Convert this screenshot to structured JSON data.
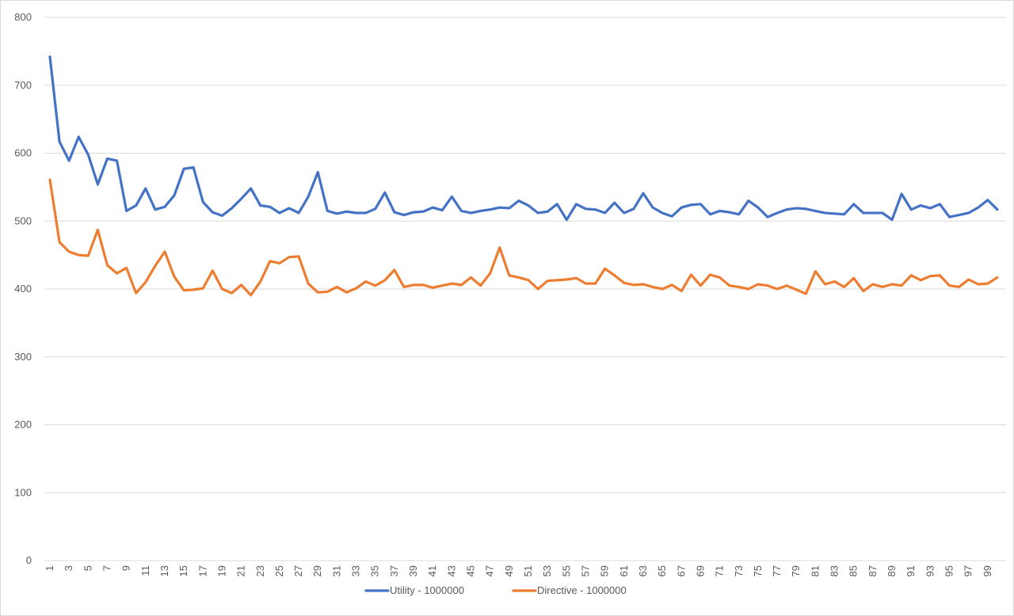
{
  "chart_data": {
    "type": "line",
    "title": "",
    "xlabel": "",
    "ylabel": "",
    "ylim": [
      0,
      800
    ],
    "yticks": [
      0,
      100,
      200,
      300,
      400,
      500,
      600,
      700,
      800
    ],
    "x": [
      1,
      2,
      3,
      4,
      5,
      6,
      7,
      8,
      9,
      10,
      11,
      12,
      13,
      14,
      15,
      16,
      17,
      18,
      19,
      20,
      21,
      22,
      23,
      24,
      25,
      26,
      27,
      28,
      29,
      30,
      31,
      32,
      33,
      34,
      35,
      36,
      37,
      38,
      39,
      40,
      41,
      42,
      43,
      44,
      45,
      46,
      47,
      48,
      49,
      50,
      51,
      52,
      53,
      54,
      55,
      56,
      57,
      58,
      59,
      60,
      61,
      62,
      63,
      64,
      65,
      66,
      67,
      68,
      69,
      70,
      71,
      72,
      73,
      74,
      75,
      76,
      77,
      78,
      79,
      80,
      81,
      82,
      83,
      84,
      85,
      86,
      87,
      88,
      89,
      90,
      91,
      92,
      93,
      94,
      95,
      96,
      97,
      98,
      99,
      100
    ],
    "xtick_labels": [
      "1",
      "3",
      "5",
      "7",
      "9",
      "11",
      "13",
      "15",
      "17",
      "19",
      "21",
      "23",
      "25",
      "27",
      "29",
      "31",
      "33",
      "35",
      "37",
      "39",
      "41",
      "43",
      "45",
      "47",
      "49",
      "51",
      "53",
      "55",
      "57",
      "59",
      "61",
      "63",
      "65",
      "67",
      "69",
      "71",
      "73",
      "75",
      "77",
      "79",
      "81",
      "83",
      "85",
      "87",
      "89",
      "91",
      "93",
      "95",
      "97",
      "99"
    ],
    "grid": true,
    "legend_position": "bottom",
    "series": [
      {
        "name": "Utility - 1000000",
        "color": "#4472C4",
        "values": [
          742,
          617,
          589,
          624,
          598,
          554,
          592,
          589,
          515,
          523,
          548,
          517,
          521,
          538,
          577,
          579,
          528,
          513,
          508,
          519,
          533,
          548,
          523,
          521,
          512,
          519,
          512,
          536,
          572,
          515,
          511,
          514,
          512,
          512,
          518,
          542,
          513,
          509,
          513,
          514,
          520,
          516,
          536,
          515,
          512,
          515,
          517,
          520,
          519,
          530,
          523,
          512,
          514,
          525,
          502,
          525,
          518,
          517,
          512,
          527,
          512,
          518,
          541,
          520,
          512,
          507,
          520,
          524,
          525,
          510,
          515,
          513,
          510,
          530,
          520,
          506,
          512,
          517,
          519,
          518,
          515,
          512,
          511,
          510,
          525,
          512,
          512,
          512,
          502,
          540,
          517,
          523,
          519,
          525,
          506,
          509,
          512,
          520,
          531,
          517
        ]
      },
      {
        "name": "Directive - 1000000",
        "color": "#ED7D31",
        "values": [
          561,
          469,
          455,
          450,
          449,
          487,
          435,
          423,
          431,
          394,
          410,
          434,
          455,
          418,
          398,
          399,
          401,
          427,
          400,
          394,
          406,
          391,
          411,
          441,
          438,
          447,
          448,
          408,
          395,
          396,
          403,
          395,
          401,
          411,
          405,
          413,
          428,
          403,
          406,
          406,
          402,
          405,
          408,
          406,
          417,
          405,
          423,
          461,
          420,
          417,
          413,
          400,
          412,
          413,
          414,
          416,
          408,
          408,
          430,
          420,
          409,
          406,
          407,
          403,
          400,
          406,
          397,
          421,
          405,
          421,
          417,
          405,
          403,
          400,
          407,
          405,
          400,
          405,
          399,
          393,
          426,
          407,
          411,
          403,
          416,
          397,
          407,
          403,
          407,
          405,
          420,
          413,
          419,
          420,
          405,
          403,
          414,
          407,
          408,
          417
        ]
      }
    ]
  }
}
